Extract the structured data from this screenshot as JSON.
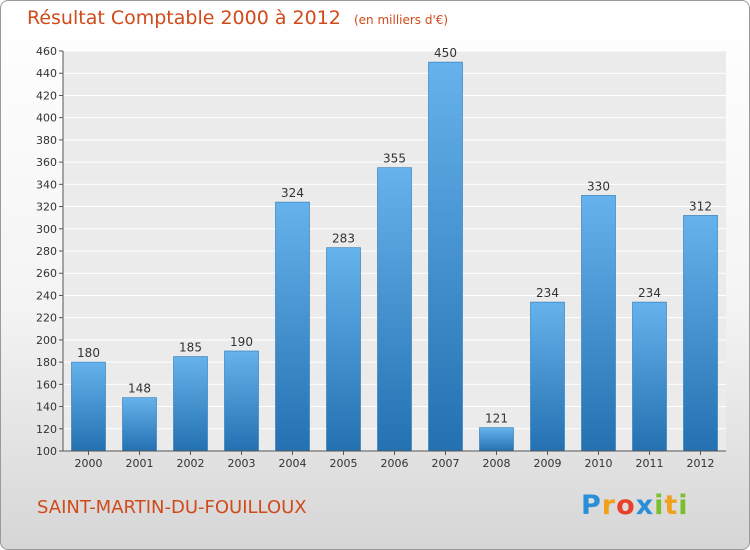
{
  "title": "Résultat Comptable 2000 à 2012",
  "unit_note": "(en milliers d'€)",
  "commune": "SAINT-MARTIN-DU-FOUILLOUX",
  "logo": {
    "letters": [
      "P",
      "r",
      "o",
      "x",
      "i",
      "t",
      "i"
    ],
    "colors": [
      "#2a8fd6",
      "#f0a11c",
      "#e8402a",
      "#2a8fd6",
      "#7cbf2e",
      "#f0a11c",
      "#7cbf2e"
    ]
  },
  "colors": {
    "bar_light": "#66b2ec",
    "bar_dark": "#2371b1",
    "title": "#d04a1a"
  },
  "chart_data": {
    "type": "bar",
    "title": "Résultat Comptable 2000 à 2012",
    "subtitle": "(en milliers d'€)",
    "xlabel": "",
    "ylabel": "",
    "categories": [
      "2000",
      "2001",
      "2002",
      "2003",
      "2004",
      "2005",
      "2006",
      "2007",
      "2008",
      "2009",
      "2010",
      "2011",
      "2012"
    ],
    "values": [
      180,
      148,
      185,
      190,
      324,
      283,
      355,
      450,
      121,
      234,
      330,
      234,
      312
    ],
    "data_labels": [
      "180",
      "148",
      "185",
      "190",
      "324",
      "283",
      "355",
      "450",
      "121",
      "234",
      "330",
      "234",
      "312"
    ],
    "ylim": [
      100,
      460
    ],
    "yticks": [
      "100",
      "120",
      "140",
      "160",
      "180",
      "200",
      "220",
      "240",
      "260",
      "280",
      "300",
      "320",
      "340",
      "360",
      "380",
      "400",
      "420",
      "440",
      "460"
    ],
    "grid": true
  }
}
